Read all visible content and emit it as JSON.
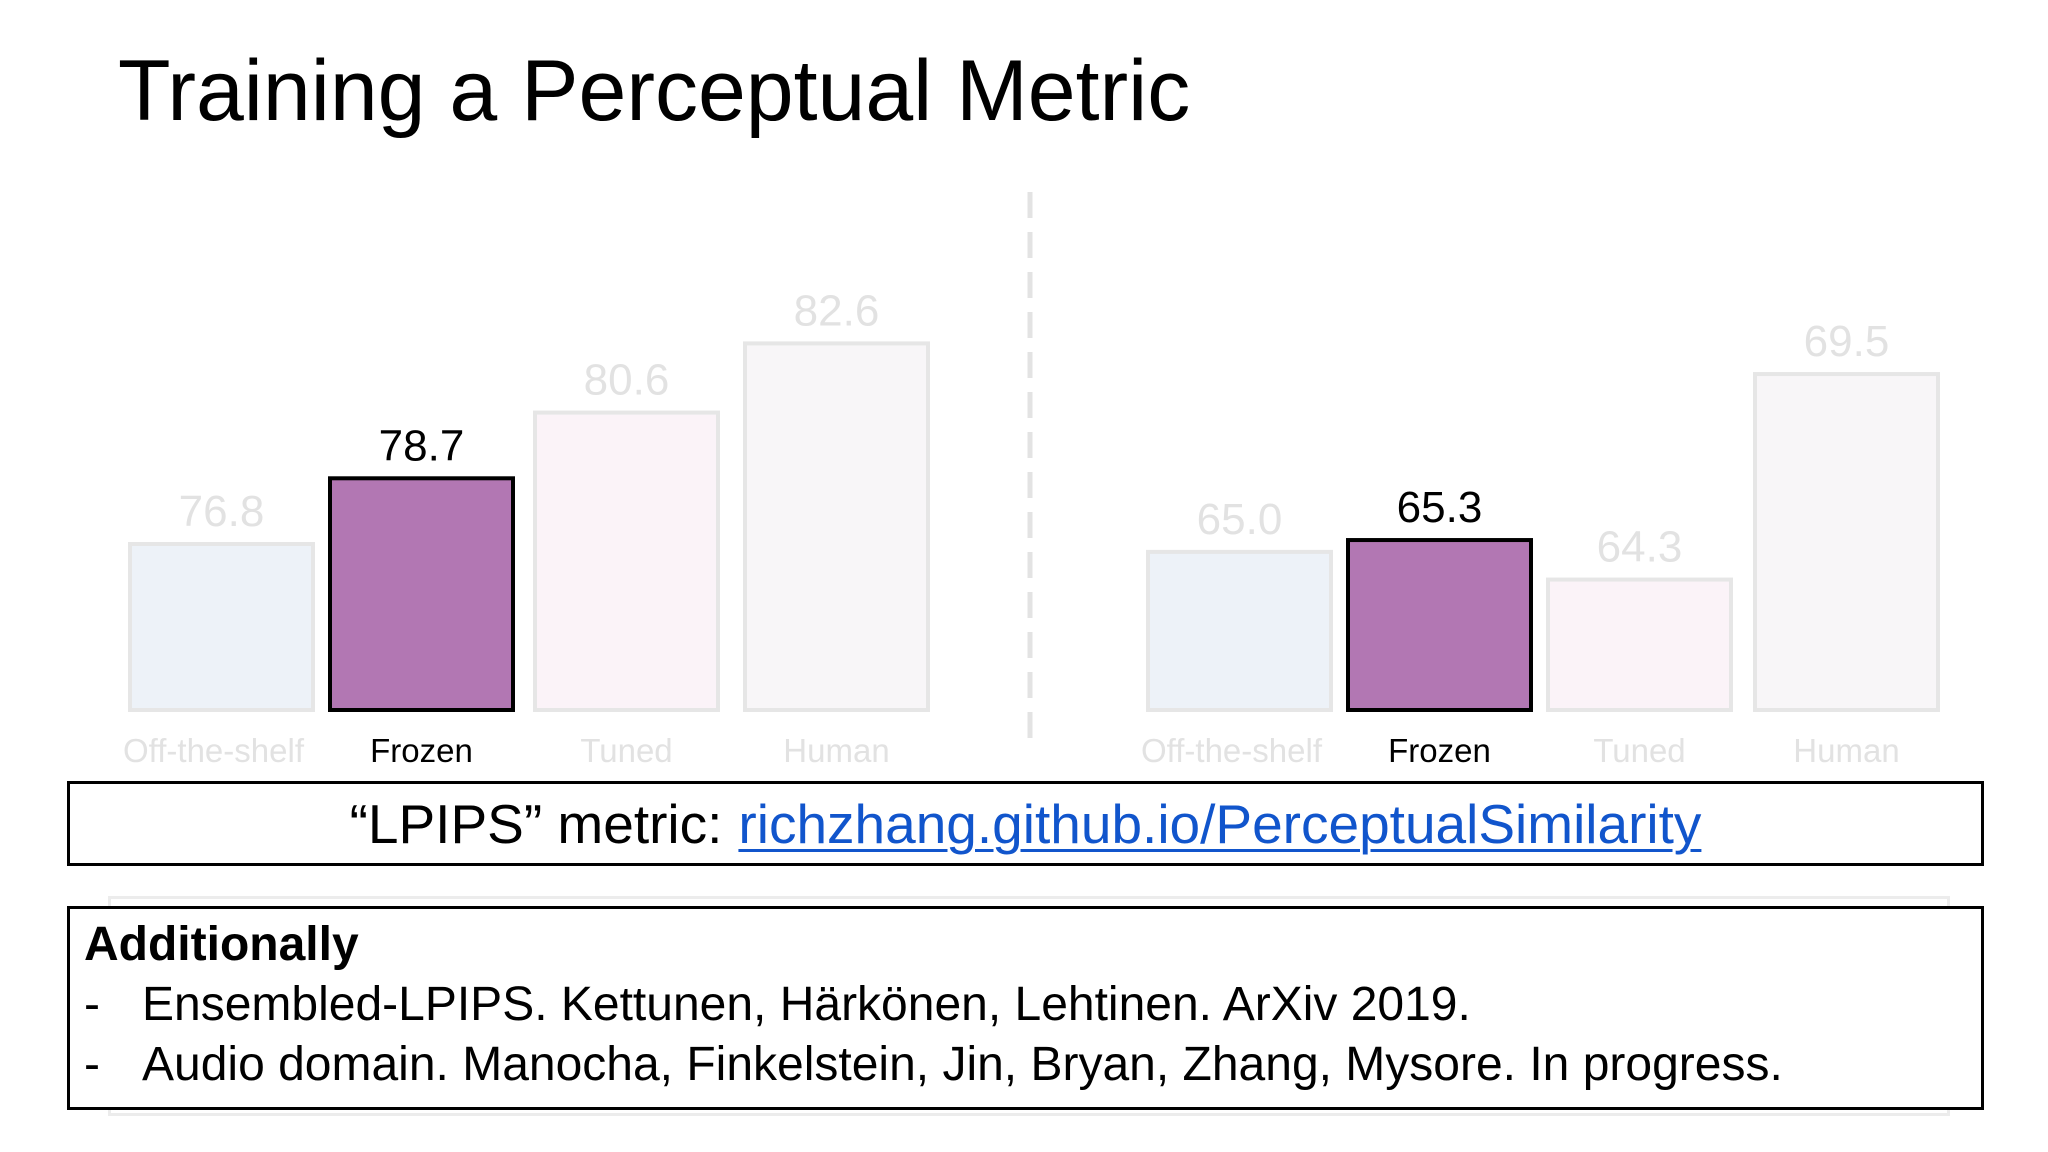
{
  "title": "Training a Perceptual Metric",
  "chart_data": [
    {
      "type": "bar",
      "categories": [
        "Off-the-shelf",
        "Frozen",
        "Tuned",
        "Human"
      ],
      "values": [
        76.8,
        78.7,
        80.6,
        82.6
      ],
      "value_labels": [
        "76.8",
        "78.7",
        "80.6",
        "82.6"
      ],
      "ylim": [
        72,
        84
      ],
      "highlighted": "Frozen",
      "colors": {
        "Off-the-shelf": "#edf2f8",
        "Frozen": "#b277b3",
        "Tuned": "#fbf3f8",
        "Human": "#f8f6f8",
        "faded_border": "#e6e6e6",
        "faded_text": "#e2e2e2"
      }
    },
    {
      "type": "bar",
      "categories": [
        "Off-the-shelf",
        "Frozen",
        "Tuned",
        "Human"
      ],
      "values": [
        65.0,
        65.3,
        64.3,
        69.5
      ],
      "value_labels": [
        "65.0",
        "65.3",
        "64.3",
        "69.5"
      ],
      "ylim": [
        61,
        71.5
      ],
      "highlighted": "Frozen",
      "colors": {
        "Off-the-shelf": "#edf2f8",
        "Frozen": "#b277b3",
        "Tuned": "#fbf3f8",
        "Human": "#f8f6f8",
        "faded_border": "#e6e6e6",
        "faded_text": "#e2e2e2"
      }
    }
  ],
  "lpips": {
    "prefix": "“LPIPS” metric:",
    "link_text": "richzhang.github.io/PerceptualSimilarity",
    "link_color": "#1155cc"
  },
  "additionally": {
    "heading": "Additionally",
    "items": [
      {
        "dash": "-",
        "text": "Ensembled-LPIPS. Kettunen, Härkönen, Lehtinen. ArXiv 2019."
      },
      {
        "dash": "-",
        "text": "Audio domain. Manocha, Finkelstein, Jin, Bryan, Zhang, Mysore. In progress."
      }
    ]
  }
}
